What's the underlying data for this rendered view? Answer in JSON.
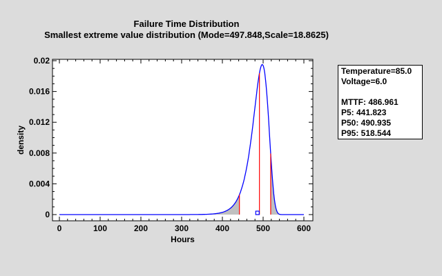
{
  "title": "Failure Time Distribution",
  "subtitle": "Smallest extreme value distribution (Mode=497.848,Scale=18.8625)",
  "legend": {
    "lines": [
      "Temperature=85.0",
      "Voltage=6.0",
      "",
      "MTTF: 486.961",
      "P5: 441.823",
      "P50: 490.935",
      "P95: 518.544"
    ]
  },
  "colors": {
    "curve": "#0000ff",
    "markers": "#ff0000",
    "tail_fill": "#c0c0c0",
    "background": "#dcdcdc"
  },
  "chart_data": {
    "type": "line",
    "title": "Failure Time Distribution",
    "subtitle": "Smallest extreme value distribution (Mode=497.848,Scale=18.8625)",
    "xlabel": "Hours",
    "ylabel": "density",
    "xlim": [
      0,
      600
    ],
    "ylim": [
      0,
      0.02
    ],
    "xticks": [
      0,
      100,
      200,
      300,
      400,
      500,
      600
    ],
    "yticks": [
      0,
      0.004,
      0.008,
      0.012,
      0.016,
      0.02
    ],
    "ytick_labels": [
      "0",
      "0.004",
      "0.008",
      "0.012",
      "0.016",
      "0.02"
    ],
    "distribution": {
      "name": "Smallest extreme value",
      "mode": 497.848,
      "scale": 18.8625
    },
    "markers": {
      "MTTF": 486.961,
      "P5": 441.823,
      "P50": 490.935,
      "P95": 518.544
    },
    "shaded_tails": [
      "x < P5",
      "x > P95"
    ],
    "grid": false,
    "legend_position": "right"
  }
}
